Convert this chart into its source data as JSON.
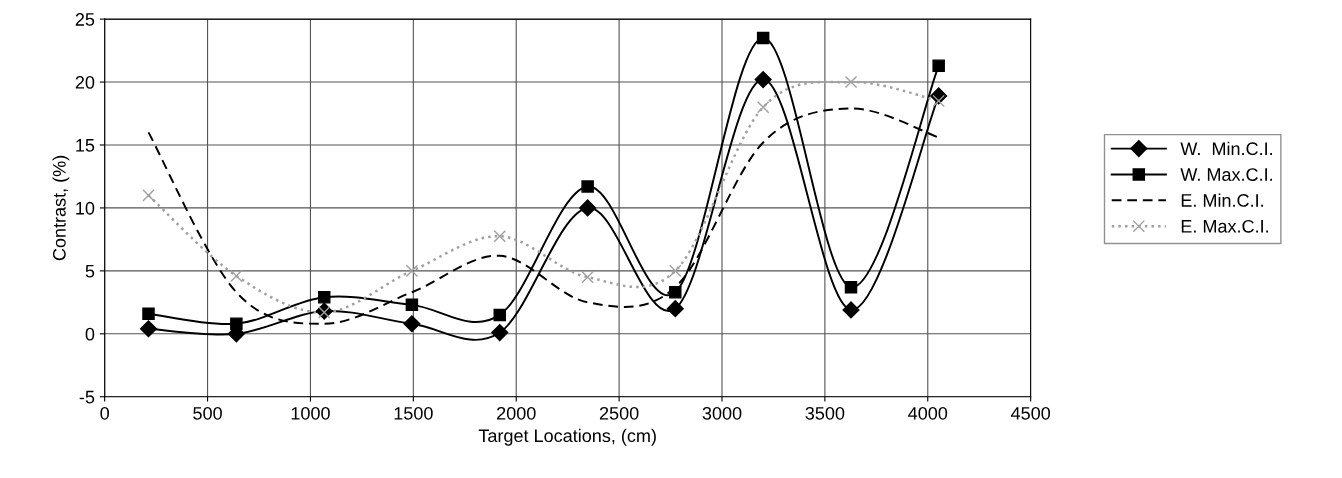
{
  "chart_data": {
    "type": "line",
    "xlabel": "Target Locations, (cm)",
    "ylabel": "Contrast, (%)",
    "x": [
      213,
      640,
      1067,
      1493,
      1920,
      2347,
      2773,
      3200,
      3627,
      4053
    ],
    "xlim": [
      0,
      4500
    ],
    "xticks": [
      0,
      500,
      1000,
      1500,
      2000,
      2500,
      3000,
      3500,
      4000,
      4500
    ],
    "ylim": [
      -5,
      25
    ],
    "yticks": [
      -5,
      0,
      5,
      10,
      15,
      20,
      25
    ],
    "grid": true,
    "legend": "right",
    "series": [
      {
        "name": "W.  Min.C.I.",
        "color": "#000000",
        "marker": "diamond",
        "line_style": "solid",
        "values": [
          0.4,
          0,
          1.8,
          0.8,
          0.1,
          10,
          2.0,
          20.2,
          1.9,
          18.9
        ]
      },
      {
        "name": "W. Max.C.I.",
        "color": "#000000",
        "marker": "square",
        "line_style": "solid",
        "values": [
          1.6,
          0.8,
          2.9,
          2.3,
          1.5,
          11.7,
          3.3,
          23.5,
          3.7,
          21.3
        ]
      },
      {
        "name": "E. Min.C.I.",
        "color": "#000000",
        "marker": "none",
        "line_style": "dashed",
        "values": [
          16,
          3.3,
          0.8,
          3.3,
          6.2,
          2.5,
          3.7,
          15.2,
          17.9,
          15.6
        ]
      },
      {
        "name": "E. Max.C.I.",
        "color": "#a0a0a0",
        "marker": "cross",
        "line_style": "dotted",
        "values": [
          11,
          4.6,
          1.7,
          5.0,
          7.75,
          4.5,
          5.0,
          18,
          20,
          18.5
        ]
      }
    ]
  }
}
